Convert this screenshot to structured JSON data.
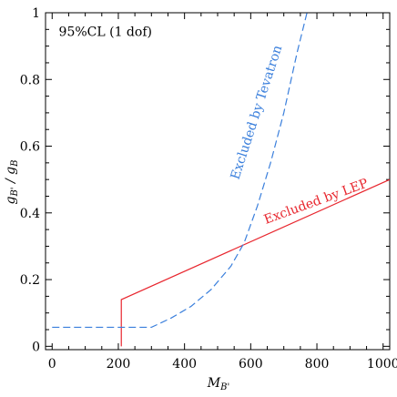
{
  "chart_data": {
    "type": "line",
    "title": "",
    "xlabel": "M_{B'}",
    "ylabel": "g_{B'} / g_B",
    "xlim": [
      -20,
      1020
    ],
    "ylim": [
      -0.01,
      1.0
    ],
    "x_ticks": [
      0,
      200,
      400,
      600,
      800,
      1000
    ],
    "x_tick_labels": [
      "0",
      "200",
      "400",
      "600",
      "800",
      "1000"
    ],
    "y_ticks": [
      0,
      0.2,
      0.4,
      0.6,
      0.8,
      1.0
    ],
    "y_tick_labels": [
      "0",
      "0.2",
      "0.4",
      "0.6",
      "0.8",
      "1"
    ],
    "grid": false,
    "series": [
      {
        "label_text": "Excluded by LEP",
        "color": "#e8262e",
        "style": "solid",
        "x": [
          209,
          209,
          1020
        ],
        "y": [
          0,
          0.14,
          0.5
        ]
      },
      {
        "label_text": "Excluded by Tevatron",
        "color": "#3a7fdc",
        "style": "dashed",
        "x": [
          0,
          300,
          360,
          420,
          480,
          540,
          580,
          620,
          660,
          700,
          740,
          770
        ],
        "y": [
          0.057,
          0.057,
          0.085,
          0.12,
          0.17,
          0.24,
          0.31,
          0.42,
          0.55,
          0.7,
          0.88,
          1.0
        ]
      }
    ],
    "annotations": [
      {
        "text": "95%CL (1 dof)",
        "x": 20,
        "y": 0.93
      }
    ]
  }
}
